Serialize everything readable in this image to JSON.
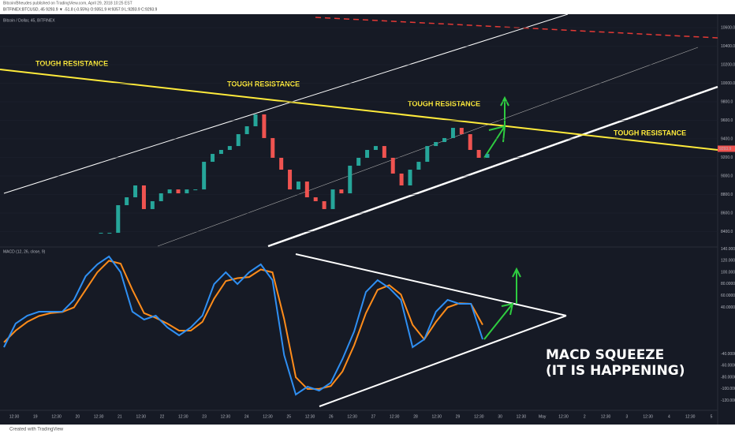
{
  "header": {
    "publisher": "Bitcoin/Bheudes published on TradingView.com, April 29, 2018 10:25 EST",
    "symbol": "BITFINEX:BTCUSD, 45  9293.9 ▼ -51.8 (-0.55%)  O:9351.9 H:9357.9 L:9283.9 C:9293.9"
  },
  "price_pane": {
    "legend": "Bitcoin / Dollar, 45, BITFINEX",
    "yticks": [
      {
        "value": 10600,
        "label": "10600.0"
      },
      {
        "value": 10400,
        "label": "10400.0"
      },
      {
        "value": 10200,
        "label": "10200.0"
      },
      {
        "value": 10000,
        "label": "10000.0"
      },
      {
        "value": 9800,
        "label": "9800.0"
      },
      {
        "value": 9600,
        "label": "9600.0"
      },
      {
        "value": 9400,
        "label": "9400.0"
      },
      {
        "value": 9200,
        "label": "9200.0"
      },
      {
        "value": 9000,
        "label": "9000.0"
      },
      {
        "value": 8800,
        "label": "8800.0"
      },
      {
        "value": 8600,
        "label": "8600.0"
      },
      {
        "value": 8400,
        "label": "8400.0"
      }
    ],
    "closes": [
      8387,
      8387,
      8685,
      8770,
      8898,
      8643,
      8728,
      8813,
      8855,
      8813,
      8855,
      8855,
      9153,
      9238,
      9281,
      9323,
      9451,
      9536,
      9664,
      9409,
      9196,
      9068,
      8855,
      8940,
      8770,
      8728,
      8643,
      8855,
      8813,
      9111,
      9196,
      9281,
      9323,
      9196,
      9026,
      8898,
      9068,
      9153,
      9323,
      9366,
      9409,
      9519,
      9451,
      9281,
      9196,
      9238
    ],
    "last_price": {
      "value": 9293.9,
      "label": "9293.9"
    },
    "annotations": [
      "TOUGH RESISTANCE",
      "TOUGH RESISTANCE",
      "TOUGH RESISTANCE",
      "TOUGH RESISTANCE"
    ]
  },
  "macd_pane": {
    "legend": "MACD (12, 26, close, 9)",
    "yticks": [
      {
        "value": 140,
        "label": "140.0000"
      },
      {
        "value": 120,
        "label": "120.0000"
      },
      {
        "value": 100,
        "label": "100.0000"
      },
      {
        "value": 80,
        "label": "80.0000"
      },
      {
        "value": 60,
        "label": "60.0000"
      },
      {
        "value": 40,
        "label": "40.0000"
      },
      {
        "value": -40,
        "label": "-40.0000"
      },
      {
        "value": -60,
        "label": "-60.0000"
      },
      {
        "value": -80,
        "label": "-80.0000"
      },
      {
        "value": -100,
        "label": "-100.0000"
      },
      {
        "value": -120,
        "label": "-120.0000"
      }
    ],
    "macd": [
      -28.4,
      12.2,
      25.7,
      32.5,
      32.5,
      32.5,
      52.8,
      93.4,
      113.7,
      127.3,
      100.2,
      32.5,
      18.9,
      25.7,
      5.4,
      -8.1,
      5.4,
      25.7,
      79.9,
      100.2,
      79.9,
      100.2,
      113.7,
      86.7,
      -42,
      -109.7,
      -96.1,
      -102.9,
      -89.4,
      -48.7,
      -1.4,
      66.3,
      86.7,
      73.1,
      52.8,
      -28.4,
      -14.9,
      32.5,
      52.8,
      46,
      46,
      -14.9
    ],
    "signal": [
      -20,
      0,
      15,
      25,
      30,
      32,
      40,
      70,
      100,
      120,
      115,
      70,
      30,
      22,
      12,
      0,
      0,
      15,
      55,
      85,
      90,
      92,
      105,
      100,
      20,
      -80,
      -100,
      -100,
      -95,
      -70,
      -25,
      30,
      70,
      78,
      62,
      10,
      -15,
      15,
      40,
      47,
      46,
      10
    ],
    "annotations": [
      "MACD SQUEEZE",
      "(IT IS HAPPENING)"
    ]
  },
  "time_axis": [
    "12:30",
    "19",
    "12:30",
    "20",
    "12:30",
    "21",
    "12:30",
    "22",
    "12:30",
    "23",
    "12:30",
    "24",
    "12:30",
    "25",
    "12:30",
    "26",
    "12:30",
    "27",
    "12:30",
    "28",
    "12:30",
    "29",
    "12:30",
    "30",
    "12:30",
    "May",
    "12:30",
    "2",
    "12:30",
    "3",
    "12:30",
    "4",
    "12:30",
    "5"
  ],
  "footer": "Created with TradingView"
}
